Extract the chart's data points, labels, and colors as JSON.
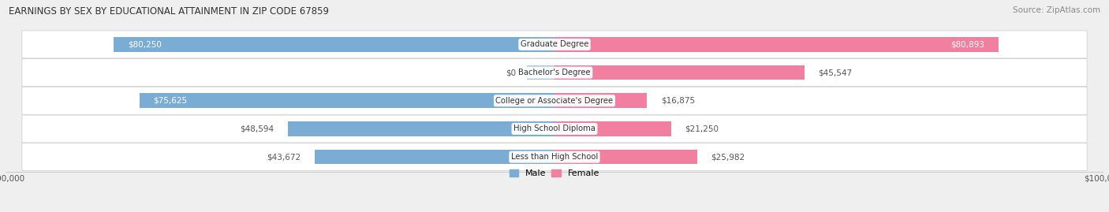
{
  "title": "EARNINGS BY SEX BY EDUCATIONAL ATTAINMENT IN ZIP CODE 67859",
  "source": "Source: ZipAtlas.com",
  "categories": [
    "Less than High School",
    "High School Diploma",
    "College or Associate's Degree",
    "Bachelor's Degree",
    "Graduate Degree"
  ],
  "male_values": [
    43672,
    48594,
    75625,
    0,
    80250
  ],
  "female_values": [
    25982,
    21250,
    16875,
    45547,
    80893
  ],
  "male_color": "#7badd4",
  "female_color": "#f07fa0",
  "male_color_light": "#a8c8e8",
  "max_value": 100000,
  "bar_height": 0.52,
  "bg_color": "#efefef",
  "row_color": "#ffffff"
}
